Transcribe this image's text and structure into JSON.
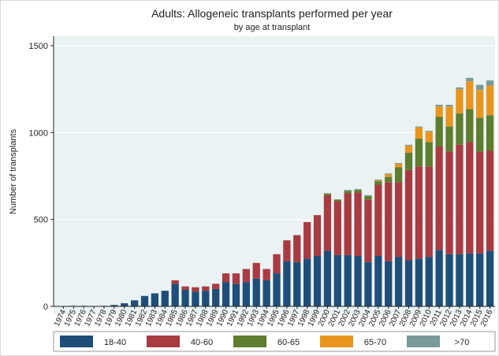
{
  "chart_data": {
    "type": "bar",
    "stacked": true,
    "title": "Adults: Allogeneic transplants performed per year",
    "subtitle": "by age at transplant",
    "xlabel": "",
    "ylabel": "Number of transplants",
    "ylim": [
      0,
      1500
    ],
    "yticks": [
      0,
      500,
      1000,
      1500
    ],
    "legend_position": "bottom",
    "categories": [
      "1974",
      "1975",
      "1976",
      "1977",
      "1978",
      "1979",
      "1980",
      "1981",
      "1982",
      "1983",
      "1984",
      "1985",
      "1986",
      "1987",
      "1988",
      "1989",
      "1990",
      "1991",
      "1992",
      "1993",
      "1994",
      "1995",
      "1996",
      "1997",
      "1998",
      "1999",
      "2000",
      "2001",
      "2002",
      "2003",
      "2004",
      "2005",
      "2006",
      "2007",
      "2008",
      "2009",
      "2010",
      "2011",
      "2012",
      "2013",
      "2014",
      "2015",
      "2016"
    ],
    "series": [
      {
        "name": "18-40",
        "color": "#1f4e79",
        "values": [
          2,
          3,
          3,
          2,
          3,
          8,
          18,
          35,
          60,
          75,
          90,
          130,
          95,
          85,
          90,
          100,
          140,
          130,
          140,
          160,
          150,
          190,
          260,
          255,
          275,
          290,
          320,
          295,
          295,
          290,
          255,
          290,
          260,
          285,
          265,
          275,
          285,
          325,
          300,
          300,
          305,
          305,
          320
        ]
      },
      {
        "name": "40-60",
        "color": "#a83b41",
        "values": [
          0,
          0,
          0,
          0,
          0,
          0,
          0,
          0,
          0,
          0,
          0,
          20,
          20,
          25,
          25,
          30,
          50,
          60,
          75,
          90,
          65,
          110,
          120,
          155,
          210,
          235,
          320,
          310,
          355,
          365,
          360,
          410,
          455,
          430,
          520,
          530,
          520,
          595,
          590,
          630,
          640,
          585,
          575
        ]
      },
      {
        "name": "60-65",
        "color": "#5e7d2f",
        "values": [
          0,
          0,
          0,
          0,
          0,
          0,
          0,
          0,
          0,
          0,
          0,
          0,
          0,
          0,
          0,
          0,
          0,
          0,
          0,
          0,
          0,
          0,
          0,
          0,
          0,
          0,
          10,
          10,
          15,
          15,
          20,
          20,
          30,
          85,
          100,
          160,
          140,
          170,
          145,
          180,
          190,
          195,
          205
        ]
      },
      {
        "name": "65-70",
        "color": "#e8951e",
        "values": [
          0,
          0,
          0,
          0,
          0,
          0,
          0,
          0,
          0,
          0,
          0,
          0,
          0,
          0,
          0,
          0,
          0,
          0,
          0,
          0,
          0,
          0,
          0,
          0,
          0,
          0,
          0,
          0,
          0,
          0,
          0,
          5,
          15,
          20,
          40,
          65,
          60,
          60,
          115,
          140,
          160,
          160,
          170
        ]
      },
      {
        "name": ">70",
        "color": "#7a9a98",
        "values": [
          0,
          0,
          0,
          0,
          0,
          0,
          0,
          0,
          0,
          0,
          0,
          0,
          0,
          0,
          0,
          0,
          0,
          0,
          0,
          0,
          0,
          0,
          0,
          0,
          0,
          0,
          0,
          0,
          5,
          5,
          5,
          5,
          5,
          5,
          5,
          5,
          5,
          10,
          10,
          10,
          20,
          30,
          30
        ]
      }
    ]
  }
}
